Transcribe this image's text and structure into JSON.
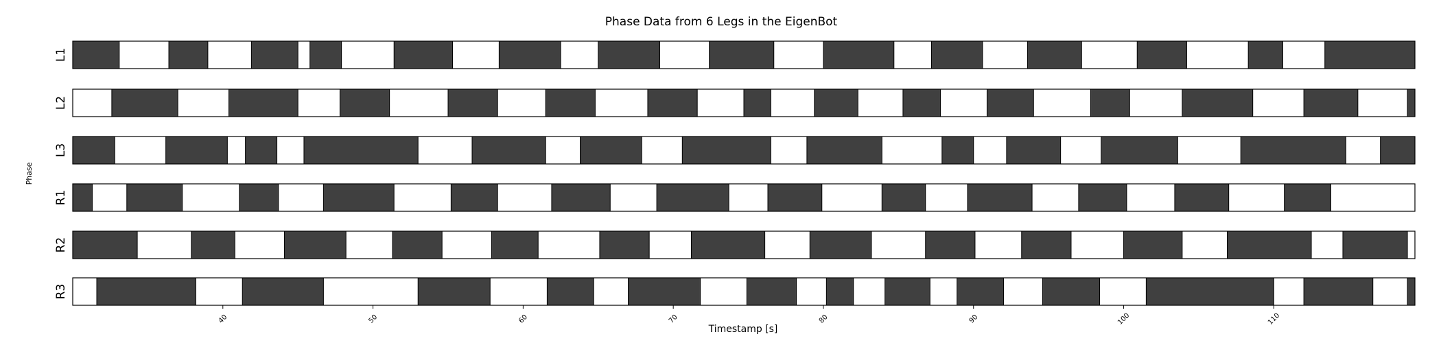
{
  "chart_data": {
    "type": "gantt",
    "title": "Phase Data from 6 Legs in the EigenBot",
    "xlabel": "Timestamp [s]",
    "ylabel": "Phase",
    "xlim": [
      30.0,
      119.4
    ],
    "xticks": [
      40,
      50,
      60,
      70,
      80,
      90,
      100,
      110
    ],
    "colors": {
      "stance": "#404040",
      "swing": "#ffffff",
      "edge": "#000000"
    },
    "legs": [
      {
        "name": "L1",
        "stance": [
          [
            30.0,
            33.1
          ],
          [
            36.4,
            39.0
          ],
          [
            41.9,
            45.0
          ],
          [
            45.8,
            47.9
          ],
          [
            51.4,
            55.3
          ],
          [
            58.4,
            62.5
          ],
          [
            65.0,
            69.1
          ],
          [
            72.4,
            76.7
          ],
          [
            80.0,
            84.7
          ],
          [
            87.2,
            90.6
          ],
          [
            93.6,
            97.2
          ],
          [
            100.9,
            104.2
          ],
          [
            108.3,
            110.6
          ],
          [
            113.4,
            119.4
          ]
        ]
      },
      {
        "name": "L2",
        "stance": [
          [
            32.6,
            37.0
          ],
          [
            40.4,
            45.0
          ],
          [
            47.8,
            51.1
          ],
          [
            55.0,
            58.3
          ],
          [
            61.5,
            64.8
          ],
          [
            68.3,
            71.6
          ],
          [
            74.7,
            76.5
          ],
          [
            79.4,
            82.3
          ],
          [
            85.3,
            87.8
          ],
          [
            90.9,
            94.0
          ],
          [
            97.8,
            100.4
          ],
          [
            103.9,
            108.6
          ],
          [
            112.0,
            115.6
          ],
          [
            118.9,
            119.4
          ]
        ]
      },
      {
        "name": "L3",
        "stance": [
          [
            30.0,
            32.8
          ],
          [
            36.2,
            40.3
          ],
          [
            41.5,
            43.6
          ],
          [
            45.4,
            53.0
          ],
          [
            56.6,
            61.5
          ],
          [
            63.8,
            67.9
          ],
          [
            70.6,
            76.5
          ],
          [
            78.9,
            83.9
          ],
          [
            87.9,
            90.0
          ],
          [
            92.2,
            95.8
          ],
          [
            98.5,
            103.6
          ],
          [
            107.8,
            114.8
          ],
          [
            117.1,
            119.4
          ]
        ]
      },
      {
        "name": "R1",
        "stance": [
          [
            30.0,
            31.3
          ],
          [
            33.6,
            37.3
          ],
          [
            41.1,
            43.7
          ],
          [
            46.7,
            51.4
          ],
          [
            55.2,
            58.3
          ],
          [
            61.9,
            65.8
          ],
          [
            68.9,
            73.7
          ],
          [
            76.3,
            79.9
          ],
          [
            83.9,
            86.8
          ],
          [
            89.6,
            93.9
          ],
          [
            97.0,
            100.2
          ],
          [
            103.4,
            107.0
          ],
          [
            110.7,
            113.8
          ]
        ]
      },
      {
        "name": "R2",
        "stance": [
          [
            30.0,
            34.3
          ],
          [
            37.9,
            40.8
          ],
          [
            44.1,
            48.2
          ],
          [
            51.3,
            54.6
          ],
          [
            57.9,
            61.0
          ],
          [
            65.1,
            68.4
          ],
          [
            71.2,
            76.1
          ],
          [
            79.1,
            83.2
          ],
          [
            86.8,
            90.1
          ],
          [
            93.2,
            96.5
          ],
          [
            100.0,
            103.9
          ],
          [
            106.9,
            112.5
          ],
          [
            114.6,
            118.9
          ]
        ]
      },
      {
        "name": "R3",
        "stance": [
          [
            31.6,
            38.2
          ],
          [
            41.3,
            46.7
          ],
          [
            53.0,
            57.8
          ],
          [
            61.6,
            64.7
          ],
          [
            67.0,
            71.8
          ],
          [
            74.9,
            78.2
          ],
          [
            80.2,
            82.0
          ],
          [
            84.1,
            87.1
          ],
          [
            88.9,
            92.0
          ],
          [
            94.6,
            98.4
          ],
          [
            101.5,
            110.0
          ],
          [
            112.0,
            116.6
          ],
          [
            118.9,
            119.4
          ]
        ]
      }
    ]
  }
}
